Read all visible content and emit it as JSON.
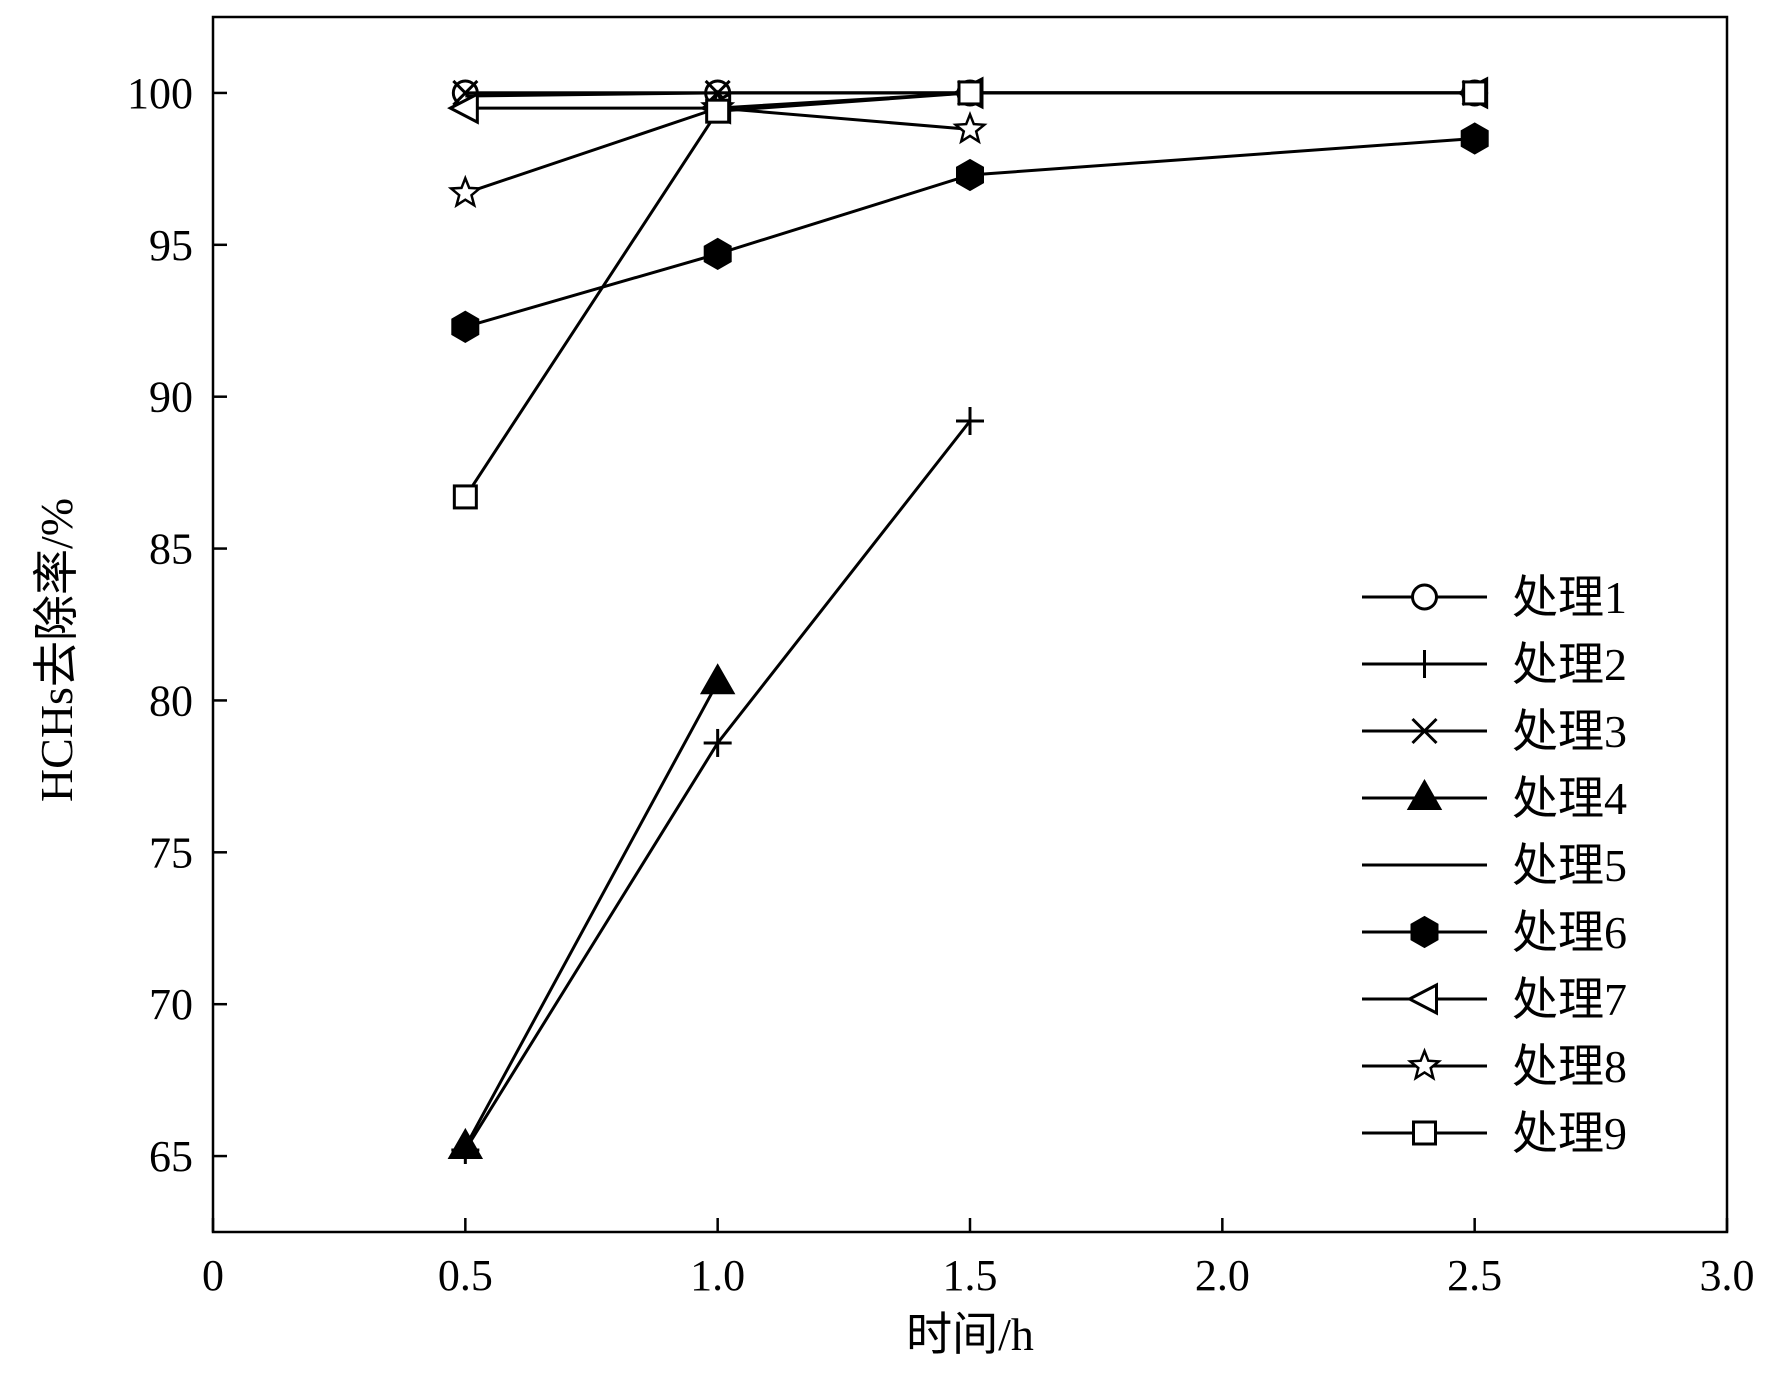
{
  "chart_data": {
    "type": "line",
    "xlabel": "时间/h",
    "ylabel": "HCHs去除率/%",
    "xlim": [
      0,
      3.0
    ],
    "ylim": [
      62.5,
      102.5
    ],
    "xticks": [
      "0",
      "0.5",
      "1.0",
      "1.5",
      "2.0",
      "2.5",
      "3.0"
    ],
    "yticks": [
      "65",
      "70",
      "75",
      "80",
      "85",
      "90",
      "95",
      "100"
    ],
    "grid": false,
    "legend_position": "bottom-right",
    "series": [
      {
        "name": "处理1",
        "marker": "circle-open",
        "x": [
          0.5,
          1.0,
          1.5,
          2.5
        ],
        "y": [
          100,
          100,
          100,
          100
        ]
      },
      {
        "name": "处理2",
        "marker": "plus",
        "x": [
          0.5,
          1.0,
          1.5
        ],
        "y": [
          65.2,
          78.6,
          89.2
        ]
      },
      {
        "name": "处理3",
        "marker": "x",
        "x": [
          0.5,
          1.0,
          1.5,
          2.5
        ],
        "y": [
          100,
          100,
          100,
          100
        ]
      },
      {
        "name": "处理4",
        "marker": "triangle-filled",
        "x": [
          0.5,
          1.0
        ],
        "y": [
          65.3,
          80.6
        ]
      },
      {
        "name": "处理5",
        "marker": "none",
        "x": [
          0.5,
          1.0,
          1.5,
          2.5
        ],
        "y": [
          99.9,
          100,
          100,
          100
        ]
      },
      {
        "name": "处理6",
        "marker": "hexagon-filled",
        "x": [
          0.5,
          1.0,
          1.5,
          2.5
        ],
        "y": [
          92.3,
          94.7,
          97.3,
          98.5
        ]
      },
      {
        "name": "处理7",
        "marker": "triangle-left-open",
        "x": [
          0.5,
          1.0,
          1.5,
          2.5
        ],
        "y": [
          99.5,
          99.5,
          100,
          100
        ]
      },
      {
        "name": "处理8",
        "marker": "star-open",
        "x": [
          0.5,
          1.0,
          1.5
        ],
        "y": [
          96.7,
          99.5,
          98.8
        ]
      },
      {
        "name": "处理9",
        "marker": "square-open",
        "x": [
          0.5,
          1.0,
          1.5,
          2.5
        ],
        "y": [
          86.7,
          99.4,
          100,
          100
        ]
      }
    ]
  }
}
